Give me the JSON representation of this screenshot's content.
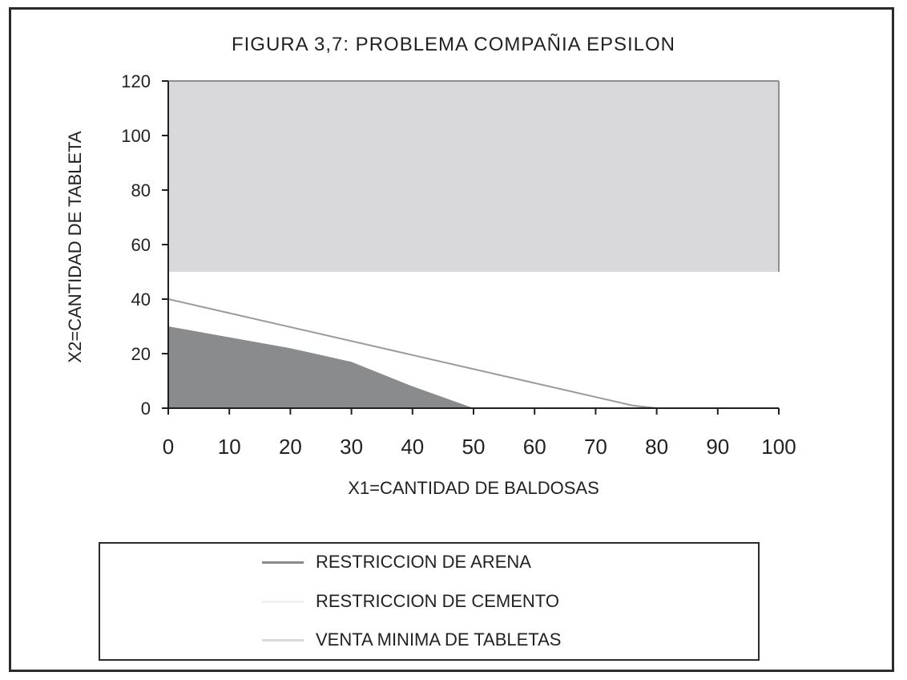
{
  "chart_data": {
    "type": "area",
    "title": "FIGURA 3,7: PROBLEMA COMPAÑIA EPSILON",
    "xlabel": "X1=CANTIDAD DE BALDOSAS",
    "ylabel": "X2=CANTIDAD DE TABLETA",
    "xlim": [
      0,
      100
    ],
    "ylim": [
      0,
      120
    ],
    "xticks": [
      0,
      10,
      20,
      30,
      40,
      50,
      60,
      70,
      80,
      90,
      100
    ],
    "yticks": [
      0,
      20,
      40,
      60,
      80,
      100,
      120
    ],
    "grid": false,
    "legend_position": "bottom",
    "series": [
      {
        "name": "RESTRICCION DE ARENA",
        "color": "#8a8b8d",
        "x": [
          0,
          10,
          20,
          30,
          40,
          50
        ],
        "y": [
          30,
          26,
          22,
          17,
          8,
          0
        ]
      },
      {
        "name": "RESTRICCION DE CEMENTO",
        "color": "#f1f1f1",
        "x": [
          0,
          76,
          80
        ],
        "y": [
          40,
          1,
          0
        ]
      },
      {
        "name": "VENTA MINIMA DE TABLETAS",
        "color": "#d9d9db",
        "y": 50
      }
    ]
  }
}
